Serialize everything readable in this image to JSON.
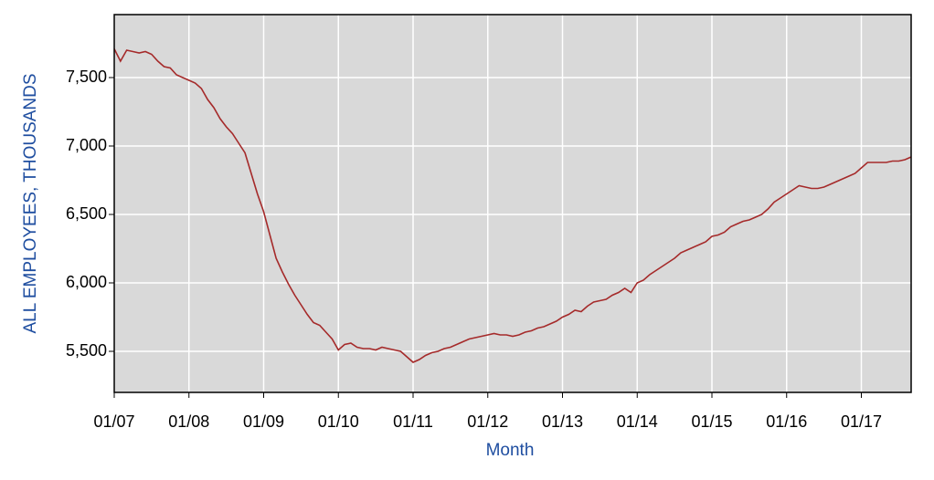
{
  "chart_data": {
    "type": "line",
    "x_label": "Month",
    "y_label": "ALL EMPLOYEES, THOUSANDS",
    "categories": [
      "01/07",
      null,
      null,
      null,
      null,
      null,
      null,
      null,
      null,
      null,
      null,
      null,
      "01/08",
      null,
      null,
      null,
      null,
      null,
      null,
      null,
      null,
      null,
      null,
      null,
      "01/09",
      null,
      null,
      null,
      null,
      null,
      null,
      null,
      null,
      null,
      null,
      null,
      "01/10",
      null,
      null,
      null,
      null,
      null,
      null,
      null,
      null,
      null,
      null,
      null,
      "01/11",
      null,
      null,
      null,
      null,
      null,
      null,
      null,
      null,
      null,
      null,
      null,
      "01/12",
      null,
      null,
      null,
      null,
      null,
      null,
      null,
      null,
      null,
      null,
      null,
      "01/13",
      null,
      null,
      null,
      null,
      null,
      null,
      null,
      null,
      null,
      null,
      null,
      "01/14",
      null,
      null,
      null,
      null,
      null,
      null,
      null,
      null,
      null,
      null,
      null,
      "01/15",
      null,
      null,
      null,
      null,
      null,
      null,
      null,
      null,
      null,
      null,
      null,
      "01/16",
      null,
      null,
      null,
      null,
      null,
      null,
      null,
      null,
      null,
      null,
      null,
      "01/17",
      null,
      null,
      null,
      null,
      null,
      null,
      null,
      null
    ],
    "series": [
      {
        "color": "#a52a2a",
        "values": [
          7710,
          7620,
          7700,
          7690,
          7680,
          7690,
          7670,
          7620,
          7580,
          7570,
          7520,
          7500,
          7480,
          7460,
          7420,
          7340,
          7280,
          7200,
          7140,
          7090,
          7020,
          6950,
          6800,
          6650,
          6520,
          6350,
          6180,
          6080,
          5990,
          5910,
          5840,
          5770,
          5710,
          5690,
          5640,
          5590,
          5510,
          5550,
          5560,
          5530,
          5520,
          5520,
          5510,
          5530,
          5520,
          5510,
          5500,
          5460,
          5420,
          5440,
          5470,
          5490,
          5500,
          5520,
          5530,
          5550,
          5570,
          5590,
          5600,
          5610,
          5620,
          5630,
          5620,
          5620,
          5610,
          5620,
          5640,
          5650,
          5670,
          5680,
          5700,
          5720,
          5750,
          5770,
          5800,
          5790,
          5830,
          5860,
          5870,
          5880,
          5910,
          5930,
          5960,
          5930,
          6000,
          6020,
          6060,
          6090,
          6120,
          6150,
          6180,
          6220,
          6240,
          6260,
          6280,
          6300,
          6340,
          6350,
          6370,
          6410,
          6430,
          6450,
          6460,
          6480,
          6500,
          6540,
          6590,
          6620,
          6650,
          6680,
          6710,
          6700,
          6690,
          6690,
          6700,
          6720,
          6740,
          6760,
          6780,
          6800,
          6840,
          6880,
          6880,
          6880,
          6880,
          6890,
          6890,
          6900,
          6920
        ]
      }
    ],
    "ylim": [
      5200,
      7960
    ],
    "yticks": [
      {
        "value": 5500,
        "label": "5,500"
      },
      {
        "value": 6000,
        "label": "6,000"
      },
      {
        "value": 6500,
        "label": "6,500"
      },
      {
        "value": 7000,
        "label": "7,000"
      },
      {
        "value": 7500,
        "label": "7,500"
      }
    ],
    "grid": true,
    "background": "#d9d9d9"
  }
}
